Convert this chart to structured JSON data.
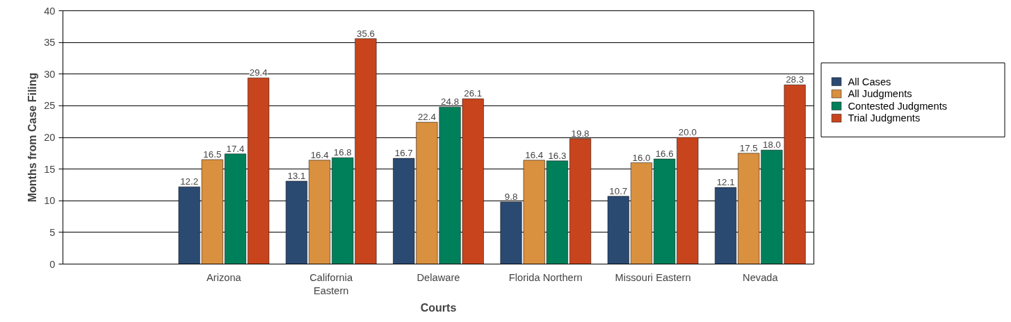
{
  "chart_data": {
    "type": "bar",
    "xlabel": "Courts",
    "ylabel": "Months from Case Filing",
    "categories": [
      null,
      "Arizona",
      "California Eastern",
      "Delaware",
      "Florida Northern",
      "Missouri Eastern",
      "Nevada"
    ],
    "series": [
      {
        "name": "All Cases",
        "color": "#2b4a72",
        "values": [
          null,
          12.2,
          13.1,
          16.7,
          9.8,
          10.7,
          12.1
        ],
        "value_labels": [
          null,
          "12.2",
          "13.1",
          "16.7",
          "9.8",
          "10.7",
          "12.1"
        ]
      },
      {
        "name": "All Judgments",
        "color": "#d9903f",
        "values": [
          null,
          16.5,
          16.4,
          22.4,
          16.4,
          16.0,
          17.5
        ],
        "value_labels": [
          null,
          "16.5",
          "16.4",
          "22.4",
          "16.4",
          "16.0",
          "17.5"
        ]
      },
      {
        "name": "Contested Judgments",
        "color": "#00805a",
        "values": [
          null,
          17.4,
          16.8,
          24.8,
          16.3,
          16.6,
          18.0
        ],
        "value_labels": [
          null,
          "17.4",
          "16.8",
          "24.8",
          "16.3",
          "16.6",
          "18.0"
        ]
      },
      {
        "name": "Trial Judgments",
        "color": "#c8441c",
        "values": [
          null,
          29.4,
          35.6,
          26.1,
          19.8,
          20.0,
          28.3
        ],
        "value_labels": [
          null,
          "29.4",
          "35.6",
          "26.1",
          "19.8",
          "20.0",
          "28.3"
        ]
      }
    ],
    "ylim": [
      0,
      40
    ],
    "yticks": [
      0,
      5,
      10,
      15,
      20,
      25,
      30,
      35,
      40
    ],
    "grid": "y",
    "legend": "right"
  }
}
